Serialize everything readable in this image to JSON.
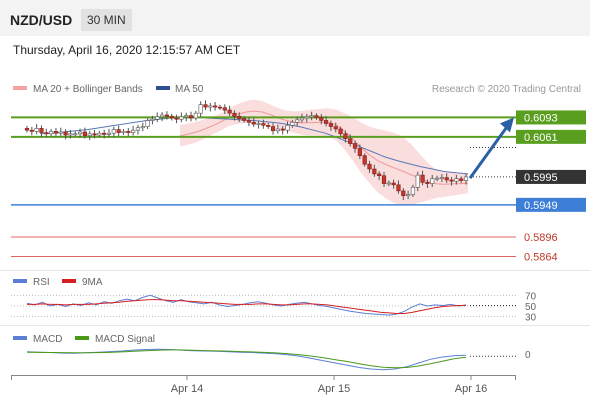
{
  "header": {
    "pair": "NZD/USD",
    "timeframe": "30 MIN"
  },
  "datetime": "Thursday, April 16, 2020 12:15:57 AM CET",
  "legend": {
    "bollinger": "MA 20 + Bollinger Bands",
    "ma50": "MA 50",
    "copyright": "Research © 2020 Trading Central",
    "rsi": "RSI",
    "rsi_ma": "9MA",
    "macd": "MACD",
    "macd_signal": "MACD Signal"
  },
  "colors": {
    "resistance_green": "#5a9e1f",
    "support_blue": "#3d7fd6",
    "red_level": "#e06666",
    "ma50": "#5a78b4",
    "bollinger": "#f4b6b6",
    "arrow": "#2b5fa3",
    "current_tag": "#333333"
  },
  "chart_data": [
    {
      "type": "candlestick",
      "name": "price",
      "x_ticks": [
        "Apr 14",
        "Apr 15",
        "Apr 16"
      ],
      "ylim": [
        0.5845,
        0.6125
      ],
      "levels": [
        {
          "value": 0.6093,
          "label": "0.6093",
          "kind": "resistance"
        },
        {
          "value": 0.6061,
          "label": "0.6061",
          "kind": "resistance"
        },
        {
          "value": 0.5995,
          "label": "0.5995",
          "kind": "current"
        },
        {
          "value": 0.5949,
          "label": "0.5949",
          "kind": "support"
        },
        {
          "value": 0.5896,
          "label": "0.5896",
          "kind": "target"
        },
        {
          "value": 0.5864,
          "label": "0.5864",
          "kind": "target"
        }
      ],
      "close_series": [
        0.6072,
        0.607,
        0.6075,
        0.6068,
        0.6066,
        0.607,
        0.6067,
        0.6069,
        0.6064,
        0.6066,
        0.6066,
        0.6069,
        0.6063,
        0.6066,
        0.6064,
        0.6067,
        0.6065,
        0.6067,
        0.6073,
        0.6068,
        0.607,
        0.6068,
        0.6072,
        0.6076,
        0.6078,
        0.6088,
        0.609,
        0.6094,
        0.6097,
        0.6095,
        0.6092,
        0.609,
        0.6094,
        0.6096,
        0.6092,
        0.61,
        0.6114,
        0.611,
        0.6112,
        0.611,
        0.6109,
        0.6105,
        0.61,
        0.6095,
        0.6091,
        0.6088,
        0.6085,
        0.6082,
        0.6083,
        0.608,
        0.6078,
        0.6071,
        0.6074,
        0.6072,
        0.608,
        0.6085,
        0.6089,
        0.6092,
        0.6094,
        0.6096,
        0.6093,
        0.6088,
        0.6083,
        0.6078,
        0.6074,
        0.6066,
        0.6058,
        0.605,
        0.6042,
        0.603,
        0.6016,
        0.6008,
        0.6,
        0.5997,
        0.5984,
        0.5985,
        0.5982,
        0.5972,
        0.5964,
        0.5966,
        0.5978,
        0.5998,
        0.5986,
        0.5984,
        0.5992,
        0.5993,
        0.5994,
        0.599,
        0.5988,
        0.5992,
        0.5989,
        0.5995
      ],
      "bollinger_upper": [
        0.608,
        0.6083,
        0.6086,
        0.609,
        0.6094,
        0.61,
        0.6108,
        0.6115,
        0.612,
        0.6122,
        0.612,
        0.6114,
        0.6108,
        0.6104,
        0.6103,
        0.6104,
        0.6106,
        0.6107,
        0.6108,
        0.6106,
        0.61,
        0.6093,
        0.6085,
        0.6078,
        0.6074,
        0.6071,
        0.6068,
        0.6062,
        0.605,
        0.6035,
        0.602,
        0.6008,
        0.6004,
        0.6003,
        0.6002,
        0.6001
      ],
      "bollinger_lower": [
        0.6045,
        0.6048,
        0.6052,
        0.6058,
        0.6065,
        0.6072,
        0.6079,
        0.6082,
        0.6084,
        0.6085,
        0.6084,
        0.6081,
        0.6076,
        0.6071,
        0.6067,
        0.6064,
        0.6063,
        0.6063,
        0.6062,
        0.6055,
        0.604,
        0.6022,
        0.6002,
        0.5985,
        0.597,
        0.596,
        0.5952,
        0.5948,
        0.5948,
        0.5952,
        0.5956,
        0.596,
        0.5962,
        0.5964,
        0.5966,
        0.5968
      ],
      "ma50": [
        0.6066,
        0.6067,
        0.6069,
        0.6071,
        0.6073,
        0.6076,
        0.6079,
        0.6082,
        0.6085,
        0.6088,
        0.609,
        0.6092,
        0.6093,
        0.6093,
        0.6092,
        0.6091,
        0.609,
        0.6089,
        0.6088,
        0.6086,
        0.6084,
        0.6081,
        0.6077,
        0.6072,
        0.6067,
        0.606,
        0.6052,
        0.6044,
        0.6036,
        0.6028,
        0.6022,
        0.6017,
        0.6012,
        0.6008,
        0.6004,
        0.6002,
        0.6
      ]
    },
    {
      "type": "line",
      "name": "rsi",
      "y_ticks": [
        70,
        50,
        30
      ],
      "ylim": [
        20,
        80
      ],
      "series": [
        {
          "name": "RSI",
          "values": [
            55,
            52,
            57,
            50,
            53,
            49,
            54,
            51,
            56,
            52,
            58,
            55,
            60,
            63,
            60,
            66,
            70,
            65,
            60,
            57,
            62,
            58,
            56,
            54,
            57,
            52,
            49,
            51,
            53,
            56,
            58,
            55,
            52,
            50,
            53,
            55,
            57,
            54,
            51,
            49,
            46,
            43,
            40,
            38,
            36,
            35,
            34,
            33,
            35,
            40,
            48,
            54,
            50,
            52,
            51,
            53,
            50,
            52
          ]
        },
        {
          "name": "9MA",
          "values": [
            53,
            53,
            54,
            53,
            53,
            52,
            53,
            53,
            53,
            54,
            55,
            56,
            57,
            59,
            60,
            61,
            62,
            62,
            61,
            60,
            60,
            59,
            58,
            57,
            56,
            55,
            54,
            53,
            53,
            53,
            54,
            54,
            53,
            52,
            52,
            53,
            54,
            54,
            53,
            52,
            50,
            48,
            46,
            44,
            42,
            40,
            38,
            37,
            36,
            36,
            38,
            41,
            44,
            47,
            49,
            50,
            51,
            51
          ]
        }
      ]
    },
    {
      "type": "line",
      "name": "macd",
      "y_ticks": [
        0
      ],
      "ylim": [
        -12,
        6
      ],
      "series": [
        {
          "name": "MACD",
          "values": [
            1.5,
            1.2,
            1.0,
            0.6,
            0.5,
            0.8,
            1.2,
            1.6,
            2.0,
            2.6,
            3.0,
            3.2,
            3.0,
            2.6,
            2.2,
            2.0,
            1.8,
            1.5,
            1.2,
            1.0,
            0.6,
            0.2,
            -0.5,
            -1.5,
            -3,
            -4.5,
            -6,
            -7.5,
            -9,
            -10,
            -10.5,
            -10,
            -8.5,
            -6,
            -3.5,
            -2,
            -1.2,
            -0.8
          ]
        },
        {
          "name": "MACD Signal",
          "values": [
            1.2,
            1.1,
            1.0,
            0.9,
            0.8,
            0.8,
            0.9,
            1.1,
            1.4,
            1.8,
            2.2,
            2.5,
            2.7,
            2.7,
            2.5,
            2.3,
            2.1,
            1.9,
            1.6,
            1.4,
            1.1,
            0.7,
            0.2,
            -0.5,
            -1.4,
            -2.5,
            -3.8,
            -5,
            -6.5,
            -7.8,
            -8.8,
            -9.2,
            -9,
            -8,
            -6.5,
            -4.8,
            -3.2,
            -2.2
          ]
        }
      ]
    }
  ]
}
